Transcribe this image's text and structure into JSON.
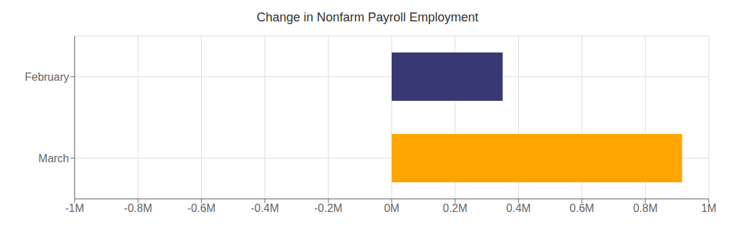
{
  "chart_data": {
    "type": "bar",
    "orientation": "horizontal",
    "title": "Change in Nonfarm Payroll Employment",
    "categories": [
      "February",
      "March"
    ],
    "values": [
      350000,
      916000
    ],
    "colors": [
      "#383874",
      "#FFA500"
    ],
    "xlim": [
      -1000000,
      1000000
    ],
    "xticks": [
      {
        "value": -1000000,
        "label": "-1M"
      },
      {
        "value": -800000,
        "label": "-0.8M"
      },
      {
        "value": -600000,
        "label": "-0.6M"
      },
      {
        "value": -400000,
        "label": "-0.4M"
      },
      {
        "value": -200000,
        "label": "-0.2M"
      },
      {
        "value": 0,
        "label": "0M"
      },
      {
        "value": 200000,
        "label": "0.2M"
      },
      {
        "value": 400000,
        "label": "0.4M"
      },
      {
        "value": 600000,
        "label": "0.6M"
      },
      {
        "value": 800000,
        "label": "0.8M"
      },
      {
        "value": 1000000,
        "label": "1M"
      }
    ],
    "grid": true
  }
}
